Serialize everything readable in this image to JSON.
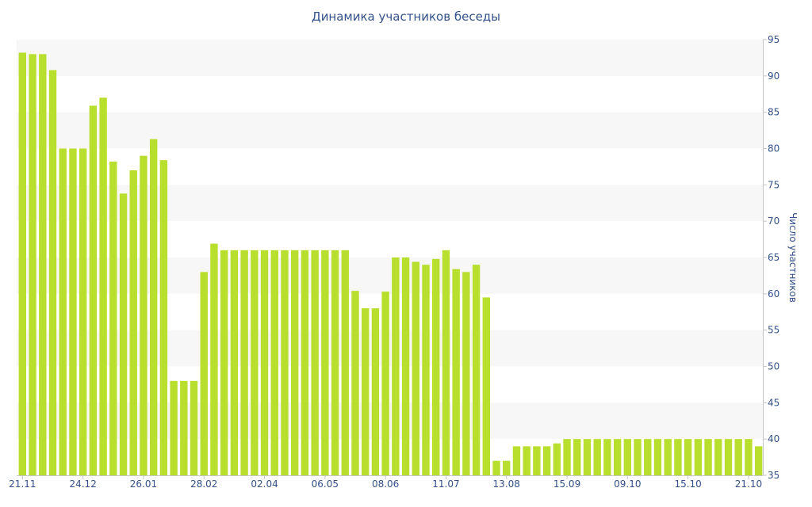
{
  "chart_data": {
    "type": "bar",
    "title": "Динамика участников беседы",
    "xlabel": "",
    "ylabel": "Число участников",
    "ylim": [
      35,
      95
    ],
    "y_ticks": [
      35,
      40,
      45,
      50,
      55,
      60,
      65,
      70,
      75,
      80,
      85,
      90,
      95
    ],
    "y_axis_position": "right",
    "grid": "horizontal-bands",
    "x_tick_labels": [
      {
        "index": 0,
        "label": "21.11"
      },
      {
        "index": 6,
        "label": "24.12"
      },
      {
        "index": 12,
        "label": "26.01"
      },
      {
        "index": 18,
        "label": "28.02"
      },
      {
        "index": 24,
        "label": "02.04"
      },
      {
        "index": 30,
        "label": "06.05"
      },
      {
        "index": 36,
        "label": "08.06"
      },
      {
        "index": 42,
        "label": "11.07"
      },
      {
        "index": 48,
        "label": "13.08"
      },
      {
        "index": 54,
        "label": "15.09"
      },
      {
        "index": 60,
        "label": "09.10"
      },
      {
        "index": 66,
        "label": "15.10"
      },
      {
        "index": 72,
        "label": "21.10"
      }
    ],
    "values": [
      93.2,
      93,
      93,
      90.8,
      80,
      80,
      80,
      85.9,
      87,
      78.2,
      73.8,
      77,
      79,
      81.3,
      78.4,
      48,
      48,
      48,
      63,
      66.9,
      66,
      66,
      66,
      66,
      66,
      66,
      66,
      66,
      66,
      66,
      66,
      66,
      66,
      60.4,
      58,
      58,
      60.3,
      65,
      65,
      64.4,
      64,
      64.8,
      66,
      63.4,
      63,
      64,
      59.5,
      37,
      37,
      39,
      39,
      39,
      39,
      39.4,
      40,
      40,
      40,
      40,
      40,
      40,
      40,
      40,
      40,
      40,
      40,
      40,
      40,
      40,
      40,
      40,
      40,
      40,
      40,
      39
    ],
    "colors": {
      "bar": "#b9df2e",
      "band": "#f7f7f7",
      "axis_text": "#33518a",
      "axis_line": "#c5c5c5"
    }
  }
}
